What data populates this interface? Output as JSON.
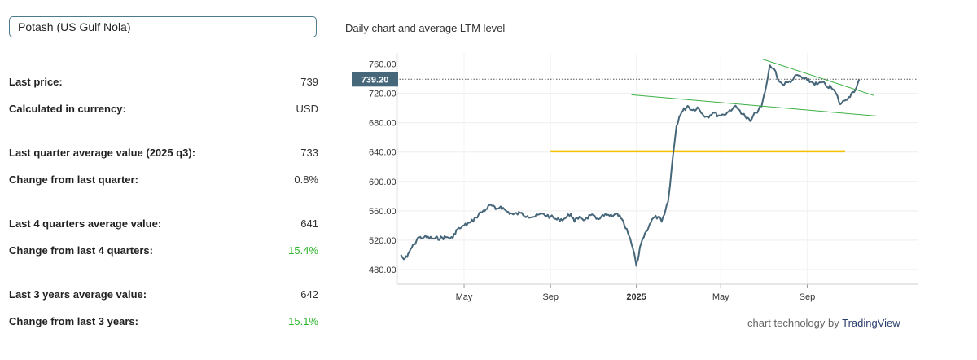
{
  "selector": {
    "value": "Potash (US Gulf Nola)"
  },
  "stats": [
    {
      "label": "Last price:",
      "value": "739",
      "highlight": false
    },
    {
      "label": "Calculated in currency:",
      "value": "USD",
      "highlight": false
    },
    {
      "label": "Last quarter average value (2025 q3):",
      "value": "733",
      "highlight": false
    },
    {
      "label": "Change from last quarter:",
      "value": "0.8%",
      "highlight": false
    },
    {
      "label": "Last 4 quarters average value:",
      "value": "641",
      "highlight": false
    },
    {
      "label": "Change from last 4 quarters:",
      "value": "15.4%",
      "highlight": true
    },
    {
      "label": "Last 3 years average value:",
      "value": "642",
      "highlight": false
    },
    {
      "label": "Change from last 3 years:",
      "value": "15.1%",
      "highlight": true
    }
  ],
  "chart_title": "Daily chart and average LTM level",
  "credit": {
    "prefix": "chart technology by ",
    "brand": "TradingView"
  },
  "colors": {
    "line": "#46667a",
    "average": "#f5c000",
    "trend": "#3cb043",
    "price_label_bg": "#46667a",
    "positive": "#2db52d"
  },
  "chart_data": {
    "type": "line",
    "title": "Daily chart and average LTM level",
    "xlabel": "",
    "ylabel": "",
    "x_ticks": [
      "May",
      "Sep",
      "2025",
      "May",
      "Sep"
    ],
    "y_ticks": [
      "760.00",
      "720.00",
      "680.00",
      "640.00",
      "600.00",
      "560.00",
      "520.00",
      "480.00"
    ],
    "ylim": [
      460,
      775
    ],
    "grid": true,
    "last_price": "739.20",
    "series": [
      {
        "points": [
          [
            "2024-02-01",
            500
          ],
          [
            "2024-02-05",
            494
          ],
          [
            "2024-02-10",
            497
          ],
          [
            "2024-02-15",
            508
          ],
          [
            "2024-02-20",
            514
          ],
          [
            "2024-02-25",
            523
          ],
          [
            "2024-03-05",
            524
          ],
          [
            "2024-03-20",
            522
          ],
          [
            "2024-04-05",
            524
          ],
          [
            "2024-04-15",
            523
          ],
          [
            "2024-04-20",
            534
          ],
          [
            "2024-04-25",
            536
          ],
          [
            "2024-05-01",
            540
          ],
          [
            "2024-05-10",
            544
          ],
          [
            "2024-05-18",
            551
          ],
          [
            "2024-05-25",
            558
          ],
          [
            "2024-06-01",
            562
          ],
          [
            "2024-06-08",
            568
          ],
          [
            "2024-06-15",
            562
          ],
          [
            "2024-06-22",
            566
          ],
          [
            "2024-07-01",
            559
          ],
          [
            "2024-07-10",
            555
          ],
          [
            "2024-07-20",
            557
          ],
          [
            "2024-07-30",
            553
          ],
          [
            "2024-08-10",
            552
          ],
          [
            "2024-08-20",
            556
          ],
          [
            "2024-09-01",
            552
          ],
          [
            "2024-09-10",
            548
          ],
          [
            "2024-09-20",
            549
          ],
          [
            "2024-09-30",
            556
          ],
          [
            "2024-10-05",
            545
          ],
          [
            "2024-10-12",
            552
          ],
          [
            "2024-10-20",
            548
          ],
          [
            "2024-10-28",
            554
          ],
          [
            "2024-11-05",
            549
          ],
          [
            "2024-11-12",
            552
          ],
          [
            "2024-11-20",
            554
          ],
          [
            "2024-11-28",
            552
          ],
          [
            "2024-12-05",
            556
          ],
          [
            "2024-12-10",
            550
          ],
          [
            "2024-12-15",
            540
          ],
          [
            "2024-12-20",
            530
          ],
          [
            "2024-12-25",
            515
          ],
          [
            "2024-12-29",
            502
          ],
          [
            "2025-01-01",
            485
          ],
          [
            "2025-01-03",
            492
          ],
          [
            "2025-01-06",
            510
          ],
          [
            "2025-01-10",
            522
          ],
          [
            "2025-01-15",
            532
          ],
          [
            "2025-01-20",
            542
          ],
          [
            "2025-01-25",
            550
          ],
          [
            "2025-02-01",
            552
          ],
          [
            "2025-02-06",
            545
          ],
          [
            "2025-02-10",
            555
          ],
          [
            "2025-02-15",
            572
          ],
          [
            "2025-02-18",
            595
          ],
          [
            "2025-02-21",
            625
          ],
          [
            "2025-02-24",
            650
          ],
          [
            "2025-02-27",
            675
          ],
          [
            "2025-03-03",
            688
          ],
          [
            "2025-03-08",
            696
          ],
          [
            "2025-03-15",
            703
          ],
          [
            "2025-03-22",
            697
          ],
          [
            "2025-03-29",
            701
          ],
          [
            "2025-04-05",
            692
          ],
          [
            "2025-04-12",
            688
          ],
          [
            "2025-04-20",
            694
          ],
          [
            "2025-04-28",
            690
          ],
          [
            "2025-05-05",
            691
          ],
          [
            "2025-05-12",
            695
          ],
          [
            "2025-05-20",
            702
          ],
          [
            "2025-05-28",
            697
          ],
          [
            "2025-06-05",
            688
          ],
          [
            "2025-06-12",
            682
          ],
          [
            "2025-06-20",
            694
          ],
          [
            "2025-06-28",
            702
          ],
          [
            "2025-07-03",
            722
          ],
          [
            "2025-07-07",
            742
          ],
          [
            "2025-07-10",
            758
          ],
          [
            "2025-07-14",
            754
          ],
          [
            "2025-07-18",
            750
          ],
          [
            "2025-07-22",
            738
          ],
          [
            "2025-07-28",
            732
          ],
          [
            "2025-08-05",
            735
          ],
          [
            "2025-08-12",
            739
          ],
          [
            "2025-08-18",
            745
          ],
          [
            "2025-08-25",
            741
          ],
          [
            "2025-09-01",
            738
          ],
          [
            "2025-09-08",
            735
          ],
          [
            "2025-09-15",
            732
          ],
          [
            "2025-09-22",
            735
          ],
          [
            "2025-09-28",
            730
          ],
          [
            "2025-10-05",
            728
          ],
          [
            "2025-10-12",
            720
          ],
          [
            "2025-10-18",
            705
          ],
          [
            "2025-10-24",
            710
          ],
          [
            "2025-10-30",
            715
          ],
          [
            "2025-11-05",
            722
          ],
          [
            "2025-11-10",
            728
          ],
          [
            "2025-11-14",
            739.2
          ]
        ]
      }
    ],
    "annotations": {
      "average_ltm": {
        "from": "2024-09-01",
        "to": "2025-10-25",
        "value": 641
      },
      "trendlines": [
        {
          "from": [
            "2024-12-25",
            718
          ],
          "to": [
            "2025-12-10",
            689
          ]
        },
        {
          "from": [
            "2025-06-28",
            767
          ],
          "to": [
            "2025-12-05",
            717
          ]
        }
      ]
    }
  }
}
